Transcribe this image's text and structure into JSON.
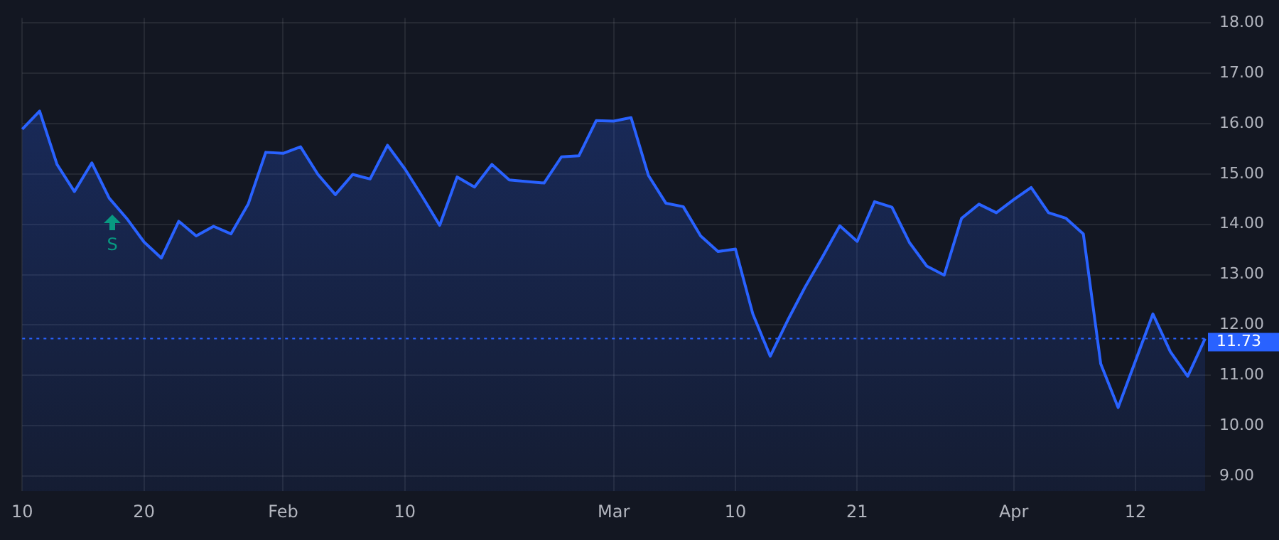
{
  "chart_data": {
    "type": "area",
    "categories": [
      "10",
      null,
      null,
      null,
      null,
      null,
      null,
      "20",
      null,
      null,
      null,
      null,
      null,
      null,
      null,
      "Feb",
      null,
      null,
      null,
      null,
      null,
      null,
      "10",
      null,
      null,
      null,
      null,
      null,
      null,
      null,
      null,
      null,
      null,
      null,
      "Mar",
      null,
      null,
      null,
      null,
      null,
      null,
      "10",
      null,
      null,
      null,
      null,
      null,
      null,
      "21",
      null,
      null,
      null,
      null,
      null,
      null,
      null,
      null,
      "Apr",
      null,
      null,
      null,
      null,
      null,
      null,
      "12",
      null,
      null,
      null,
      null
    ],
    "series": [
      {
        "color": "#2962ff",
        "values": [
          15.89,
          16.25,
          15.19,
          14.65,
          15.22,
          14.52,
          14.12,
          13.65,
          13.33,
          14.06,
          13.77,
          13.96,
          13.81,
          14.41,
          15.43,
          15.41,
          15.54,
          14.99,
          14.59,
          14.99,
          14.9,
          15.57,
          15.1,
          14.55,
          13.98,
          14.94,
          14.74,
          15.19,
          14.88,
          14.85,
          14.82,
          15.34,
          15.36,
          16.06,
          16.05,
          16.12,
          14.97,
          14.42,
          14.35,
          13.77,
          13.46,
          13.51,
          12.22,
          11.38,
          12.09,
          12.75,
          13.35,
          13.97,
          13.66,
          14.45,
          14.34,
          13.64,
          13.17,
          12.99,
          14.12,
          14.4,
          14.23,
          14.49,
          14.73,
          14.23,
          14.12,
          13.81,
          11.23,
          10.36,
          11.29,
          12.22,
          11.47,
          10.98,
          11.73
        ]
      }
    ],
    "ylim": [
      8.7,
      18.1
    ],
    "yticks": [
      {
        "value": 9,
        "label": "9.00"
      },
      {
        "value": 10,
        "label": "10.00"
      },
      {
        "value": 11,
        "label": "11.00"
      },
      {
        "value": 12,
        "label": "12.00"
      },
      {
        "value": 13,
        "label": "13.00"
      },
      {
        "value": 14,
        "label": "14.00"
      },
      {
        "value": 15,
        "label": "15.00"
      },
      {
        "value": 16,
        "label": "16.00"
      },
      {
        "value": 17,
        "label": "17.00"
      },
      {
        "value": 18,
        "label": "18.00"
      }
    ],
    "ref_lines": [
      {
        "axis": "y",
        "value": 11.73,
        "label": "11.73",
        "color": "#2962ff",
        "line_style": "dotted"
      }
    ],
    "annotations": [
      "S"
    ],
    "grid": true,
    "legend": false,
    "marker": "none",
    "line_style": "solid"
  }
}
